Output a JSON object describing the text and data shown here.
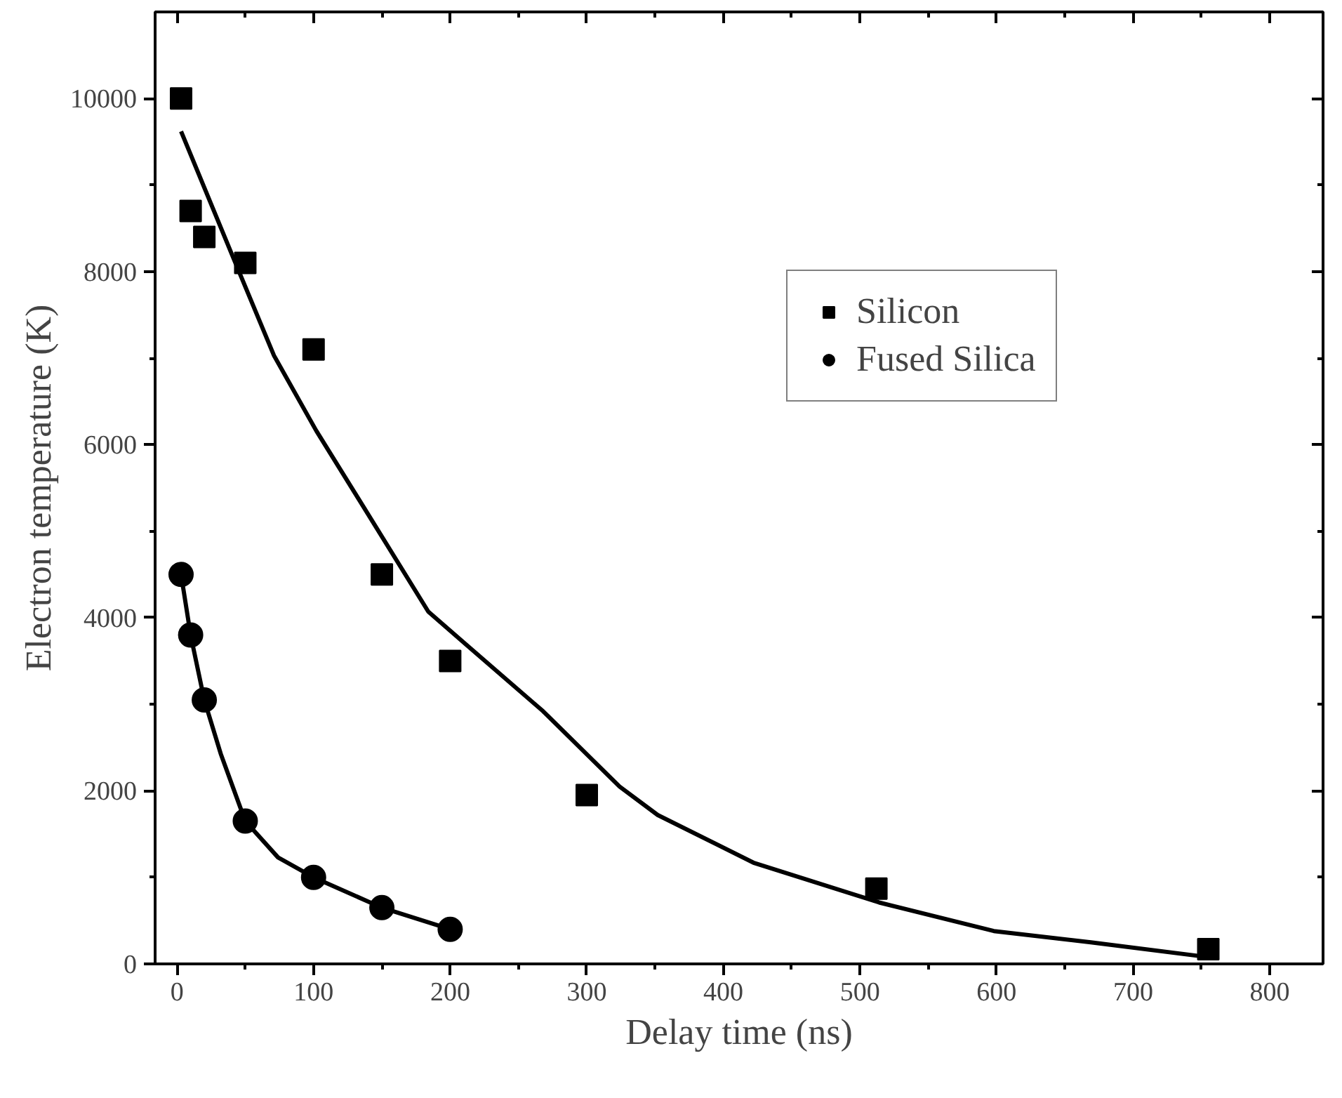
{
  "chart_data": {
    "type": "scatter",
    "xlabel": "Delay time (ns)",
    "ylabel": "Electron temperature (K)",
    "xlim": [
      -16,
      839
    ],
    "ylim": [
      0,
      11000
    ],
    "xticks": [
      0,
      100,
      200,
      300,
      400,
      500,
      600,
      700,
      800
    ],
    "yticks": [
      0,
      2000,
      4000,
      6000,
      8000,
      10000
    ],
    "grid": false,
    "legend": "top right",
    "series": [
      {
        "name": "Silicon",
        "marker": "square",
        "color": "#000000",
        "x": [
          3,
          10,
          20,
          50,
          100,
          150,
          200,
          300,
          512,
          755
        ],
        "values": [
          10000,
          8700,
          8400,
          8100,
          7100,
          4500,
          3500,
          1950,
          870,
          170
        ]
      },
      {
        "name": "Fused Silica",
        "marker": "circle",
        "color": "#000000",
        "x": [
          3,
          10,
          20,
          50,
          100,
          150,
          200
        ],
        "values": [
          4500,
          3800,
          3050,
          1650,
          1000,
          650,
          400
        ]
      },
      {
        "type": "line",
        "marker": "none",
        "color": "#000000",
        "x": [
          3,
          42,
          71,
          102,
          137,
          184,
          211,
          268,
          324,
          352,
          422,
          514,
          598,
          669,
          754
        ],
        "values": [
          9620,
          8130,
          7030,
          6160,
          5270,
          4070,
          3700,
          2920,
          2050,
          1720,
          1170,
          710,
          380,
          250,
          80
        ]
      },
      {
        "type": "line",
        "marker": "none",
        "color": "#000000",
        "x": [
          3,
          10,
          20,
          32,
          50,
          74,
          100,
          150,
          200
        ],
        "values": [
          4500,
          3800,
          3050,
          2430,
          1650,
          1230,
          1000,
          650,
          400
        ]
      }
    ]
  }
}
